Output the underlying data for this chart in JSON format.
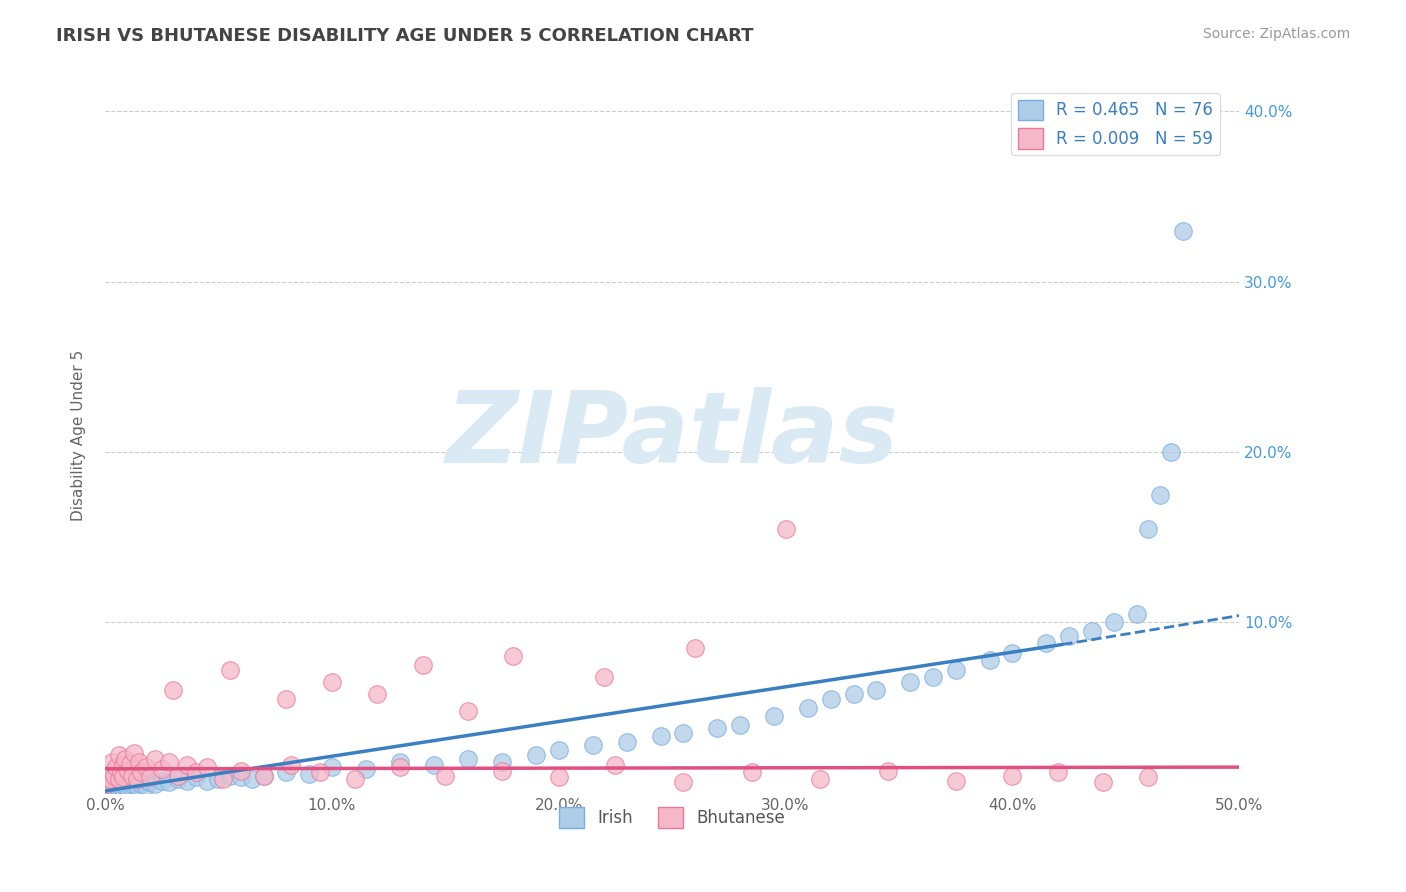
{
  "title": "IRISH VS BHUTANESE DISABILITY AGE UNDER 5 CORRELATION CHART",
  "source": "Source: ZipAtlas.com",
  "ylabel": "Disability Age Under 5",
  "xlim": [
    0.0,
    0.5
  ],
  "ylim": [
    0.0,
    0.42
  ],
  "xticks": [
    0.0,
    0.1,
    0.2,
    0.3,
    0.4,
    0.5
  ],
  "yticks": [
    0.1,
    0.2,
    0.3,
    0.4
  ],
  "irish_R": 0.465,
  "irish_N": 76,
  "bhutanese_R": 0.009,
  "bhutanese_N": 59,
  "irish_color": "#aecde8",
  "irish_edge_color": "#7aade0",
  "bhutanese_color": "#f5b8c8",
  "bhutanese_edge_color": "#e8789a",
  "trend_irish_color": "#3a7fc1",
  "trend_bhut_color": "#e05080",
  "watermark_color": "#daeaf5",
  "irish_trend_x0": 0.0,
  "irish_trend_y0": 0.001,
  "irish_trend_x1": 0.422,
  "irish_trend_y1": 0.087,
  "irish_trend_dash_x1": 0.5,
  "irish_trend_dash_y1": 0.104,
  "bhut_trend_x0": 0.0,
  "bhut_trend_y0": 0.014,
  "bhut_trend_x1": 0.5,
  "bhut_trend_y1": 0.015,
  "irish_x": [
    0.001,
    0.002,
    0.003,
    0.003,
    0.004,
    0.004,
    0.005,
    0.005,
    0.006,
    0.006,
    0.007,
    0.007,
    0.008,
    0.008,
    0.009,
    0.009,
    0.01,
    0.01,
    0.011,
    0.011,
    0.012,
    0.013,
    0.014,
    0.015,
    0.016,
    0.017,
    0.018,
    0.019,
    0.02,
    0.022,
    0.025,
    0.028,
    0.032,
    0.036,
    0.04,
    0.045,
    0.05,
    0.055,
    0.06,
    0.065,
    0.07,
    0.08,
    0.09,
    0.1,
    0.115,
    0.13,
    0.145,
    0.16,
    0.175,
    0.19,
    0.2,
    0.215,
    0.23,
    0.245,
    0.255,
    0.27,
    0.28,
    0.295,
    0.31,
    0.32,
    0.33,
    0.34,
    0.355,
    0.365,
    0.375,
    0.39,
    0.4,
    0.415,
    0.425,
    0.435,
    0.445,
    0.455,
    0.46,
    0.465,
    0.47,
    0.475
  ],
  "irish_y": [
    0.002,
    0.003,
    0.004,
    0.006,
    0.003,
    0.005,
    0.004,
    0.007,
    0.003,
    0.006,
    0.004,
    0.008,
    0.003,
    0.005,
    0.004,
    0.007,
    0.003,
    0.006,
    0.004,
    0.008,
    0.005,
    0.006,
    0.004,
    0.007,
    0.005,
    0.008,
    0.004,
    0.007,
    0.006,
    0.005,
    0.007,
    0.006,
    0.008,
    0.007,
    0.009,
    0.007,
    0.008,
    0.01,
    0.009,
    0.008,
    0.01,
    0.012,
    0.011,
    0.015,
    0.014,
    0.018,
    0.016,
    0.02,
    0.018,
    0.022,
    0.025,
    0.028,
    0.03,
    0.033,
    0.035,
    0.038,
    0.04,
    0.045,
    0.05,
    0.055,
    0.058,
    0.06,
    0.065,
    0.068,
    0.072,
    0.078,
    0.082,
    0.088,
    0.092,
    0.095,
    0.1,
    0.105,
    0.155,
    0.175,
    0.2,
    0.33
  ],
  "bhutanese_x": [
    0.001,
    0.002,
    0.003,
    0.003,
    0.004,
    0.005,
    0.006,
    0.006,
    0.007,
    0.008,
    0.008,
    0.009,
    0.01,
    0.011,
    0.012,
    0.013,
    0.014,
    0.015,
    0.016,
    0.018,
    0.02,
    0.022,
    0.025,
    0.028,
    0.032,
    0.036,
    0.04,
    0.045,
    0.052,
    0.06,
    0.07,
    0.082,
    0.095,
    0.11,
    0.13,
    0.15,
    0.175,
    0.2,
    0.225,
    0.255,
    0.285,
    0.315,
    0.345,
    0.375,
    0.4,
    0.42,
    0.44,
    0.46,
    0.03,
    0.055,
    0.08,
    0.1,
    0.12,
    0.14,
    0.16,
    0.18,
    0.22,
    0.26,
    0.3
  ],
  "bhutanese_y": [
    0.005,
    0.008,
    0.012,
    0.018,
    0.01,
    0.015,
    0.008,
    0.022,
    0.012,
    0.016,
    0.009,
    0.02,
    0.013,
    0.017,
    0.01,
    0.023,
    0.008,
    0.018,
    0.012,
    0.015,
    0.009,
    0.02,
    0.014,
    0.018,
    0.01,
    0.016,
    0.012,
    0.015,
    0.008,
    0.013,
    0.01,
    0.016,
    0.012,
    0.008,
    0.015,
    0.01,
    0.013,
    0.009,
    0.016,
    0.006,
    0.012,
    0.008,
    0.013,
    0.007,
    0.01,
    0.012,
    0.006,
    0.009,
    0.06,
    0.072,
    0.055,
    0.065,
    0.058,
    0.075,
    0.048,
    0.08,
    0.068,
    0.085,
    0.155
  ]
}
